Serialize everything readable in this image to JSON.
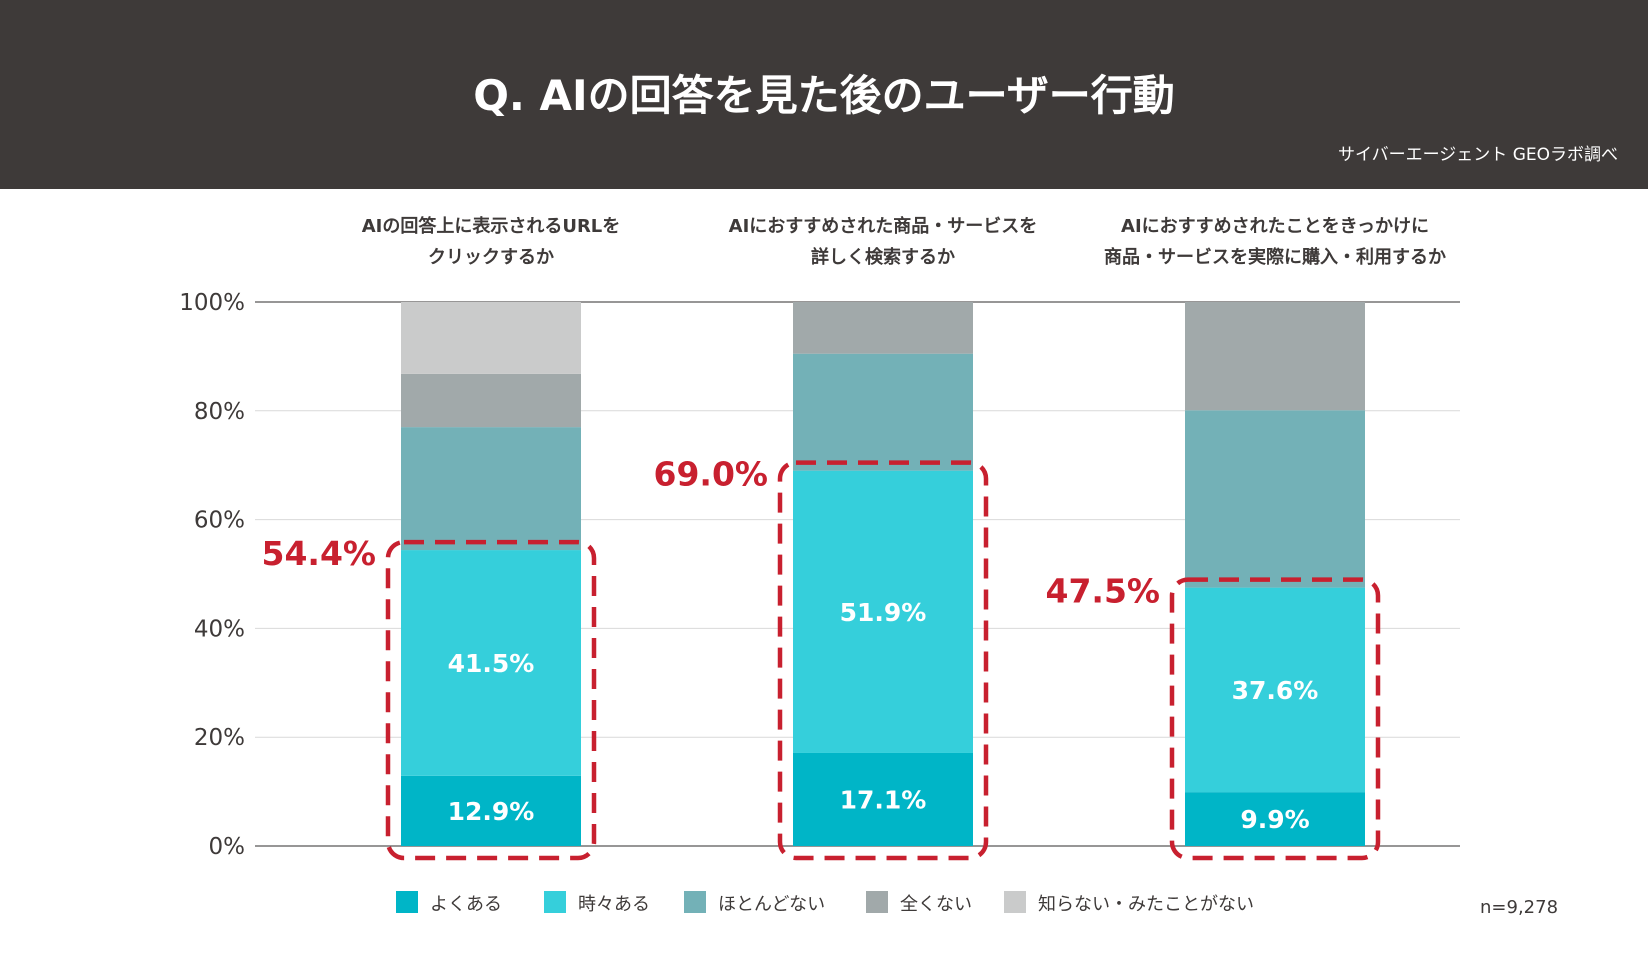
{
  "header": {
    "title": "Q. AIの回答を見た後のユーザー行動",
    "source": "サイバーエージェント GEOラボ調べ"
  },
  "note": "n=9,278",
  "colors": {
    "header_bg": "#3e3a39",
    "yokuaru": "#00b5c7",
    "tokidoki": "#35cfdb",
    "hotondo": "#73b1b7",
    "mattaku": "#a1a9aa",
    "shiranai": "#cacbcb",
    "highlight": "#c8202f"
  },
  "chart_data": {
    "type": "bar",
    "stacked": true,
    "y_axis": {
      "ticks": [
        "0%",
        "20%",
        "40%",
        "60%",
        "80%",
        "100%"
      ],
      "ylim": [
        0,
        100
      ]
    },
    "categories": [
      [
        "AIの回答上に表示されるURLを",
        "クリックするか"
      ],
      [
        "AIにおすすめされた商品・サービスを",
        "詳しく検索するか"
      ],
      [
        "AIにおすすめされたことをきっかけに",
        "商品・サービスを実際に購入・利用するか"
      ]
    ],
    "series": [
      {
        "name": "よくある",
        "color": "#00b5c7",
        "values": [
          12.9,
          17.1,
          9.9
        ],
        "labels": [
          "12.9%",
          "17.1%",
          "9.9%"
        ]
      },
      {
        "name": "時々ある",
        "color": "#35cfdb",
        "values": [
          41.5,
          51.9,
          37.6
        ],
        "labels": [
          "41.5%",
          "51.9%",
          "37.6%"
        ]
      },
      {
        "name": "ほとんどない",
        "color": "#73b1b7",
        "values": [
          22.6,
          21.5,
          32.6
        ]
      },
      {
        "name": "全くない",
        "color": "#a1a9aa",
        "values": [
          9.8,
          9.5,
          19.9
        ]
      },
      {
        "name": "知らない・みたことがない",
        "color": "#cacbcb",
        "values": [
          13.2,
          0,
          0
        ]
      }
    ],
    "highlights": [
      {
        "value": 54.4,
        "label": "54.4%"
      },
      {
        "value": 69.0,
        "label": "69.0%"
      },
      {
        "value": 47.5,
        "label": "47.5%"
      }
    ]
  }
}
